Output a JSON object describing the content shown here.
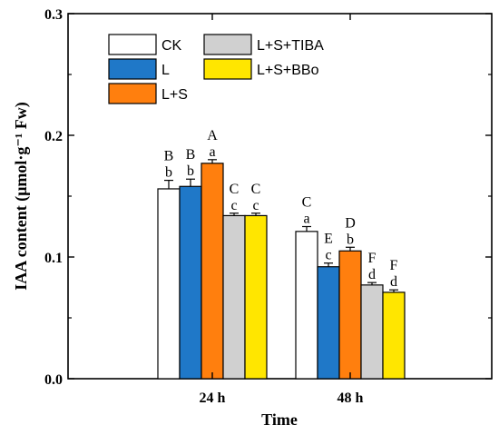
{
  "chart_data": {
    "type": "bar",
    "xlabel": "Time",
    "ylabel": "IAA content (μmol·g⁻¹ Fw)",
    "ylim": [
      0,
      0.3
    ],
    "yticks": [
      "0.0",
      "0.1",
      "0.2",
      "0.3"
    ],
    "categories": [
      "24 h",
      "48 h"
    ],
    "legend_position": "top-left",
    "series": [
      {
        "name": "CK",
        "color": "#ffffff",
        "values": [
          0.156,
          0.121
        ],
        "errors": [
          0.007,
          0.004
        ],
        "upper_letters": [
          "B",
          "C"
        ],
        "lower_letters": [
          "b",
          "a"
        ]
      },
      {
        "name": "L",
        "color": "#1f78c8",
        "values": [
          0.158,
          0.092
        ],
        "errors": [
          0.006,
          0.003
        ],
        "upper_letters": [
          "B",
          "E"
        ],
        "lower_letters": [
          "b",
          "c"
        ]
      },
      {
        "name": "L+S",
        "color": "#ff7f0e",
        "values": [
          0.177,
          0.105
        ],
        "errors": [
          0.003,
          0.003
        ],
        "upper_letters": [
          "A",
          "D"
        ],
        "lower_letters": [
          "a",
          "b"
        ]
      },
      {
        "name": "L+S+TIBA",
        "color": "#d0d0d0",
        "values": [
          0.134,
          0.077
        ],
        "errors": [
          0.002,
          0.002
        ],
        "upper_letters": [
          "C",
          "F"
        ],
        "lower_letters": [
          "c",
          "d"
        ]
      },
      {
        "name": "L+S+BBo",
        "color": "#ffe600",
        "values": [
          0.134,
          0.071
        ],
        "errors": [
          0.002,
          0.002
        ],
        "upper_letters": [
          "C",
          "F"
        ],
        "lower_letters": [
          "c",
          "d"
        ]
      }
    ]
  }
}
